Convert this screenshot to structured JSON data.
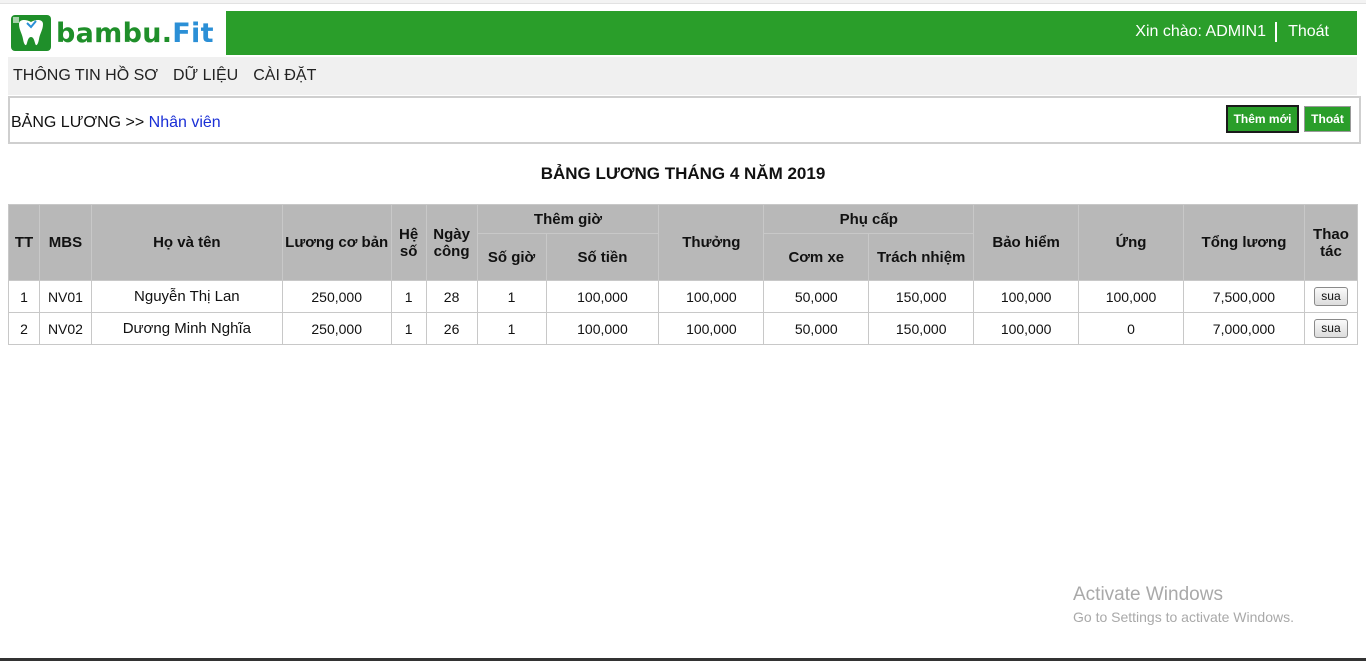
{
  "header": {
    "logo_part1": "bambu.",
    "logo_part2": "Fit",
    "greeting": "Xin chào: ADMIN1",
    "logout": "Thoát",
    "bg_color": "#2a9e2a"
  },
  "nav": {
    "items": [
      {
        "label": "THÔNG TIN HỒ SƠ"
      },
      {
        "label": "DỮ LIỆU"
      },
      {
        "label": "CÀI ĐẶT"
      }
    ]
  },
  "breadcrumb": {
    "root": "BẢNG LƯƠNG >> ",
    "current": "Nhân viên"
  },
  "actions": {
    "add_label": "Thêm mới",
    "exit_label": "Thoát"
  },
  "page_title": "BẢNG LƯƠNG THÁNG 4 NĂM 2019",
  "table": {
    "headers": {
      "tt": "TT",
      "mbs": "MBS",
      "name": "Họ và tên",
      "base_salary": "Lương cơ bản",
      "coef": "Hệ số",
      "workdays": "Ngày công",
      "overtime": "Thêm giờ",
      "ot_hours": "Số giờ",
      "ot_amount": "Số tiền",
      "bonus": "Thưởng",
      "allowance": "Phụ cấp",
      "meal_travel": "Cơm xe",
      "responsibility": "Trách nhiệm",
      "insurance": "Bảo hiểm",
      "advance": "Ứng",
      "total": "Tổng lương",
      "action": "Thao tác"
    },
    "rows": [
      {
        "tt": "1",
        "mbs": "NV01",
        "name": "Nguyễn Thị Lan",
        "base_salary": "250,000",
        "coef": "1",
        "workdays": "28",
        "ot_hours": "1",
        "ot_amount": "100,000",
        "bonus": "100,000",
        "meal_travel": "50,000",
        "responsibility": "150,000",
        "insurance": "100,000",
        "advance": "100,000",
        "total": "7,500,000",
        "action": "sua"
      },
      {
        "tt": "2",
        "mbs": "NV02",
        "name": "Dương Minh Nghĩa",
        "base_salary": "250,000",
        "coef": "1",
        "workdays": "26",
        "ot_hours": "1",
        "ot_amount": "100,000",
        "bonus": "100,000",
        "meal_travel": "50,000",
        "responsibility": "150,000",
        "insurance": "100,000",
        "advance": "0",
        "total": "7,000,000",
        "action": "sua"
      }
    ]
  },
  "watermark": {
    "line1": "Activate Windows",
    "line2": "Go to Settings to activate Windows."
  }
}
